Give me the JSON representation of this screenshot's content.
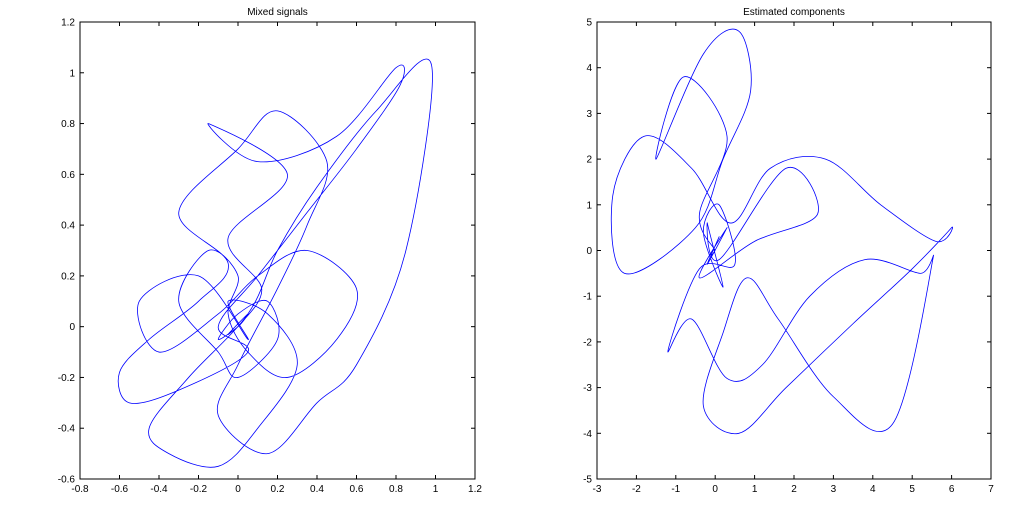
{
  "colors": {
    "trace": "#0000ff",
    "axes": "#000000",
    "background": "#ffffff"
  },
  "chart_data": [
    {
      "type": "line",
      "title": "Mixed signals",
      "xlabel": "",
      "ylabel": "",
      "xlim": [
        -0.8,
        1.2
      ],
      "ylim": [
        -0.6,
        1.2
      ],
      "xticks": [
        -0.8,
        -0.6,
        -0.4,
        -0.2,
        0,
        0.2,
        0.4,
        0.6,
        0.8,
        1,
        1.2
      ],
      "yticks": [
        -0.6,
        -0.4,
        -0.2,
        0,
        0.2,
        0.4,
        0.6,
        0.8,
        1,
        1.2
      ],
      "xtick_labels": [
        "-0.8",
        "-0.6",
        "-0.4",
        "-0.2",
        "0",
        "0.2",
        "0.4",
        "0.6",
        "0.8",
        "1",
        "1.2"
      ],
      "ytick_labels": [
        "-0.6",
        "-0.4",
        "-0.2",
        "0",
        "0.2",
        "0.4",
        "0.6",
        "0.8",
        "1",
        "1.2"
      ],
      "grid": false,
      "series": [
        {
          "color": "#0000ff",
          "x": [
            0.0,
            0.12,
            -0.05,
            0.25,
            -0.15,
            0.1,
            0.5,
            0.8,
            0.82,
            0.6,
            0.35,
            0.1,
            -0.1,
            0.05,
            -0.3,
            -0.55,
            -0.6,
            -0.45,
            -0.2,
            -0.05,
            -0.3,
            0.0,
            0.2,
            0.45,
            0.35,
            0.2,
            0.0,
            -0.1,
            0.15,
            0.4,
            0.6,
            0.85,
            0.98,
            0.7,
            0.4,
            0.2,
            0.05,
            -0.25,
            -0.45,
            -0.35,
            -0.1,
            0.1,
            0.3,
            0.15,
            -0.05,
            0.05,
            -0.2,
            -0.5,
            -0.4,
            -0.1,
            0.1,
            0.35,
            0.6,
            0.5,
            0.25,
            0.05,
            -0.05,
            0.0,
            -0.15,
            -0.3,
            -0.1,
            0.0,
            0.2,
            0.15,
            0.0,
            -0.1,
            0.0,
            0.05,
            -0.05,
            0.0
          ],
          "y": [
            0.0,
            0.15,
            0.35,
            0.6,
            0.8,
            0.65,
            0.75,
            1.02,
            0.95,
            0.7,
            0.45,
            0.2,
            0.0,
            -0.1,
            -0.25,
            -0.3,
            -0.18,
            -0.05,
            0.1,
            0.25,
            0.45,
            0.7,
            0.85,
            0.65,
            0.4,
            0.15,
            -0.15,
            -0.35,
            -0.5,
            -0.3,
            -0.15,
            0.3,
            1.03,
            0.85,
            0.55,
            0.3,
            0.05,
            -0.2,
            -0.4,
            -0.5,
            -0.55,
            -0.4,
            -0.15,
            0.05,
            0.1,
            -0.05,
            0.2,
            0.1,
            -0.1,
            0.05,
            0.2,
            0.3,
            0.15,
            -0.05,
            -0.2,
            -0.1,
            0.05,
            0.2,
            0.3,
            0.1,
            -0.1,
            -0.2,
            -0.05,
            0.1,
            0.05,
            -0.05,
            0.0,
            0.05,
            -0.03,
            0.0
          ]
        }
      ]
    },
    {
      "type": "line",
      "title": "Estimated components",
      "xlabel": "",
      "ylabel": "",
      "xlim": [
        -3,
        7
      ],
      "ylim": [
        -5,
        5
      ],
      "xticks": [
        -3,
        -2,
        -1,
        0,
        1,
        2,
        3,
        4,
        5,
        6,
        7
      ],
      "yticks": [
        -5,
        -4,
        -3,
        -2,
        -1,
        0,
        1,
        2,
        3,
        4,
        5
      ],
      "xtick_labels": [
        "-3",
        "-2",
        "-1",
        "0",
        "1",
        "2",
        "3",
        "4",
        "5",
        "6",
        "7"
      ],
      "ytick_labels": [
        "-5",
        "-4",
        "-3",
        "-2",
        "-1",
        "0",
        "1",
        "2",
        "3",
        "4",
        "5"
      ],
      "grid": false,
      "series": [
        {
          "color": "#0000ff",
          "x": [
            0.0,
            -0.4,
            0.3,
            -0.8,
            -1.5,
            -0.3,
            0.6,
            0.9,
            0.2,
            -0.5,
            -2.3,
            -2.6,
            -1.8,
            -0.6,
            0.4,
            1.4,
            2.8,
            4.2,
            5.6,
            6.0,
            5.0,
            3.5,
            1.8,
            0.6,
            -0.3,
            0.2,
            0.8,
            1.6,
            3.0,
            4.5,
            5.5,
            5.2,
            3.8,
            2.4,
            1.2,
            0.3,
            -0.6,
            -1.2,
            -0.4,
            0.5,
            0.1,
            -0.3,
            0.2,
            -0.2,
            0.1,
            1.8,
            2.6,
            1.0,
            -0.4,
            0.3,
            -0.2,
            0.1,
            -0.1,
            0.0
          ],
          "y": [
            0.0,
            0.8,
            2.5,
            3.8,
            2.0,
            4.3,
            4.8,
            3.5,
            2.0,
            0.5,
            -0.5,
            1.2,
            2.5,
            1.8,
            0.6,
            1.8,
            2.0,
            1.0,
            0.2,
            0.5,
            -0.4,
            -1.6,
            -3.0,
            -4.0,
            -3.4,
            -1.8,
            -0.6,
            -1.5,
            -3.2,
            -3.8,
            -0.3,
            -0.5,
            -0.2,
            -1.0,
            -2.5,
            -2.8,
            -1.5,
            -2.2,
            -0.4,
            -0.3,
            1.0,
            0.4,
            -0.8,
            0.6,
            -0.2,
            1.8,
            0.8,
            0.2,
            -0.6,
            0.5,
            -0.3,
            0.3,
            -0.1,
            0.0
          ]
        }
      ]
    }
  ]
}
